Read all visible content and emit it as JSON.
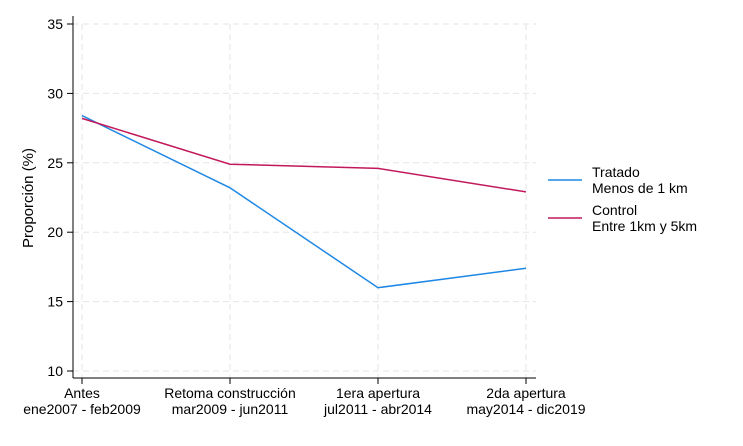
{
  "chart_data": {
    "type": "line",
    "categories": [
      {
        "line1": "Antes",
        "line2": "ene2007 - feb2009"
      },
      {
        "line1": "Retoma construcción",
        "line2": "mar2009 - jun2011"
      },
      {
        "line1": "1era apertura",
        "line2": "jul2011 - abr2014"
      },
      {
        "line1": "2da apertura",
        "line2": "may2014 - dic2019"
      }
    ],
    "ylabel": "Proporción (%)",
    "ylim": [
      10,
      35
    ],
    "yticks": [
      10,
      15,
      20,
      25,
      30,
      35
    ],
    "grid": true,
    "legend_position": "right",
    "series": [
      {
        "name": "Tratado",
        "name_line2": "Menos de 1 km",
        "color": "#1f88e5",
        "values": [
          28.4,
          23.2,
          16.0,
          17.4
        ]
      },
      {
        "name": "Control",
        "name_line2": "Entre 1km y 5km",
        "color": "#c2185b",
        "values": [
          28.2,
          24.9,
          24.6,
          22.9
        ]
      }
    ]
  }
}
